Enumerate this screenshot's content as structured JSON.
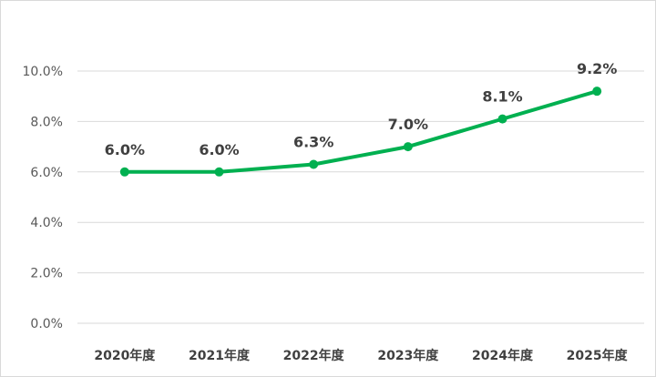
{
  "chart_data": {
    "type": "line",
    "categories": [
      "2020年度",
      "2021年度",
      "2022年度",
      "2023年度",
      "2024年度",
      "2025年度"
    ],
    "series": [
      {
        "values": [
          6.0,
          6.0,
          6.3,
          7.0,
          8.1,
          9.2
        ],
        "data_labels": [
          "6.0%",
          "6.0%",
          "6.3%",
          "7.0%",
          "8.1%",
          "9.2%"
        ],
        "color": "#00b050"
      }
    ],
    "ylim": [
      0,
      10
    ],
    "yticks": [
      0,
      2,
      4,
      6,
      8,
      10
    ],
    "ytick_labels": [
      "0.0%",
      "2.0%",
      "4.0%",
      "6.0%",
      "8.0%",
      "10.0%"
    ],
    "grid": true,
    "legend": "none",
    "title": "",
    "xlabel": "",
    "ylabel": ""
  }
}
